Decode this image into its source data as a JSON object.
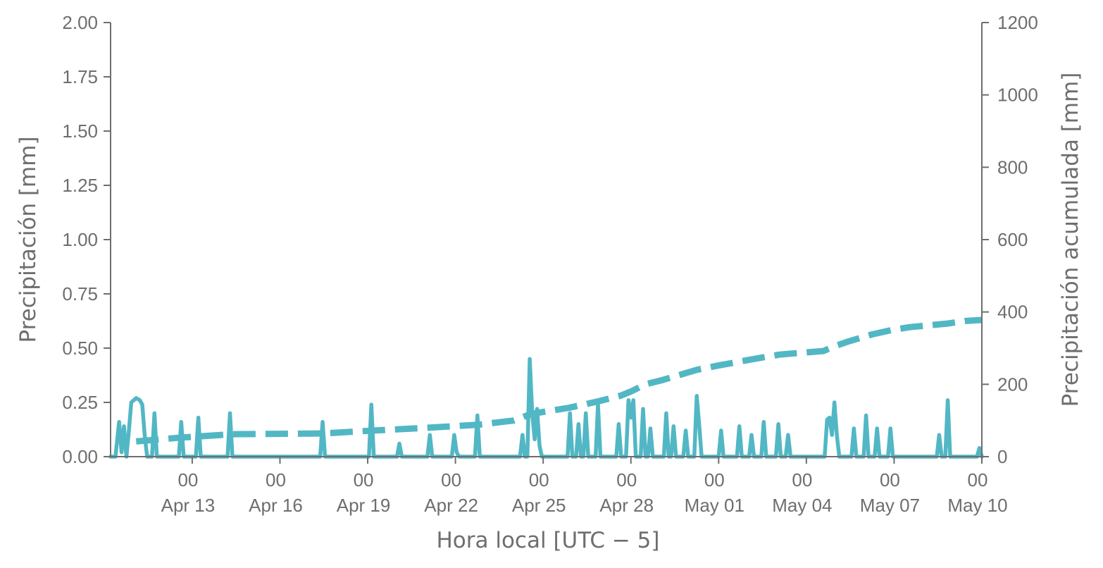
{
  "chart_data": {
    "type": "line",
    "xlabel": "Hora local [UTC − 5]",
    "ylabel_left": "Precipitación [mm]",
    "ylabel_right": "Precipitación acumulada [mm]",
    "xlim": [
      "2025-04-10T05:00",
      "2025-05-10T00:00"
    ],
    "ylim_left": [
      0,
      2.0
    ],
    "ylim_right": [
      0,
      1200
    ],
    "xticks": [
      {
        "date": "2025-04-13T00:00",
        "line1": "00",
        "line2": "Apr 13"
      },
      {
        "date": "2025-04-16T00:00",
        "line1": "00",
        "line2": "Apr 16"
      },
      {
        "date": "2025-04-19T00:00",
        "line1": "00",
        "line2": "Apr 19"
      },
      {
        "date": "2025-04-22T00:00",
        "line1": "00",
        "line2": "Apr 22"
      },
      {
        "date": "2025-04-25T00:00",
        "line1": "00",
        "line2": "Apr 25"
      },
      {
        "date": "2025-04-28T00:00",
        "line1": "00",
        "line2": "Apr 28"
      },
      {
        "date": "2025-05-01T00:00",
        "line1": "00",
        "line2": "May 01"
      },
      {
        "date": "2025-05-04T00:00",
        "line1": "00",
        "line2": "May 04"
      },
      {
        "date": "2025-05-07T00:00",
        "line1": "00",
        "line2": "May 07"
      },
      {
        "date": "2025-05-10T00:00",
        "line1": "00",
        "line2": "May 10"
      }
    ],
    "yticks_left": [
      "0.00",
      "0.25",
      "0.50",
      "0.75",
      "1.00",
      "1.25",
      "1.50",
      "1.75",
      "2.00"
    ],
    "yticks_right": [
      "0",
      "200",
      "400",
      "600",
      "800",
      "1000",
      "1200"
    ],
    "grid": false,
    "series": [
      {
        "style": "solid",
        "color": "#52b7c4",
        "points": [
          [
            "2025-04-10T05:00",
            0
          ],
          [
            "2025-04-10T09:00",
            0
          ],
          [
            "2025-04-10T12:00",
            0.16
          ],
          [
            "2025-04-10T14:00",
            0.02
          ],
          [
            "2025-04-10T16:00",
            0.14
          ],
          [
            "2025-04-10T18:00",
            0
          ],
          [
            "2025-04-10T20:00",
            0.12
          ],
          [
            "2025-04-10T22:00",
            0.25
          ],
          [
            "2025-04-11T00:00",
            0.26
          ],
          [
            "2025-04-11T02:00",
            0.27
          ],
          [
            "2025-04-11T05:00",
            0.26
          ],
          [
            "2025-04-11T07:00",
            0.24
          ],
          [
            "2025-04-11T09:00",
            0.1
          ],
          [
            "2025-04-11T11:00",
            0
          ],
          [
            "2025-04-11T15:00",
            0
          ],
          [
            "2025-04-11T17:00",
            0.2
          ],
          [
            "2025-04-11T19:00",
            0
          ],
          [
            "2025-04-12T13:00",
            0
          ],
          [
            "2025-04-12T15:00",
            0.16
          ],
          [
            "2025-04-12T17:00",
            0
          ],
          [
            "2025-04-13T03:00",
            0
          ],
          [
            "2025-04-13T05:00",
            0.18
          ],
          [
            "2025-04-13T07:00",
            0
          ],
          [
            "2025-04-14T05:00",
            0
          ],
          [
            "2025-04-14T07:00",
            0.2
          ],
          [
            "2025-04-14T09:00",
            0
          ],
          [
            "2025-04-17T09:00",
            0
          ],
          [
            "2025-04-17T11:00",
            0.16
          ],
          [
            "2025-04-17T13:00",
            0
          ],
          [
            "2025-04-19T01:00",
            0
          ],
          [
            "2025-04-19T03:00",
            0.24
          ],
          [
            "2025-04-19T05:00",
            0
          ],
          [
            "2025-04-20T00:00",
            0
          ],
          [
            "2025-04-20T02:00",
            0.06
          ],
          [
            "2025-04-20T04:00",
            0
          ],
          [
            "2025-04-21T01:00",
            0
          ],
          [
            "2025-04-21T03:00",
            0.1
          ],
          [
            "2025-04-21T05:00",
            0
          ],
          [
            "2025-04-21T21:00",
            0
          ],
          [
            "2025-04-21T23:00",
            0.1
          ],
          [
            "2025-04-22T01:00",
            0.02
          ],
          [
            "2025-04-22T03:00",
            0
          ],
          [
            "2025-04-22T16:00",
            0
          ],
          [
            "2025-04-22T18:00",
            0.19
          ],
          [
            "2025-04-22T20:00",
            0
          ],
          [
            "2025-04-24T05:00",
            0
          ],
          [
            "2025-04-24T07:00",
            0.1
          ],
          [
            "2025-04-24T09:00",
            0
          ],
          [
            "2025-04-24T11:00",
            0
          ],
          [
            "2025-04-24T13:00",
            0.45
          ],
          [
            "2025-04-24T15:00",
            0.2
          ],
          [
            "2025-04-24T17:00",
            0.08
          ],
          [
            "2025-04-24T19:00",
            0.22
          ],
          [
            "2025-04-24T21:00",
            0.05
          ],
          [
            "2025-04-24T23:00",
            0
          ],
          [
            "2025-04-25T20:00",
            0
          ],
          [
            "2025-04-25T22:00",
            0.2
          ],
          [
            "2025-04-26T00:00",
            0
          ],
          [
            "2025-04-26T03:00",
            0
          ],
          [
            "2025-04-26T05:00",
            0.15
          ],
          [
            "2025-04-26T07:00",
            0
          ],
          [
            "2025-04-26T09:00",
            0
          ],
          [
            "2025-04-26T11:00",
            0.2
          ],
          [
            "2025-04-26T13:00",
            0
          ],
          [
            "2025-04-26T19:00",
            0
          ],
          [
            "2025-04-26T21:00",
            0.24
          ],
          [
            "2025-04-26T23:00",
            0
          ],
          [
            "2025-04-27T12:00",
            0
          ],
          [
            "2025-04-27T14:00",
            0.15
          ],
          [
            "2025-04-27T16:00",
            0
          ],
          [
            "2025-04-27T20:00",
            0
          ],
          [
            "2025-04-27T22:00",
            0.26
          ],
          [
            "2025-04-28T00:00",
            0.18
          ],
          [
            "2025-04-28T02:00",
            0.26
          ],
          [
            "2025-04-28T04:00",
            0
          ],
          [
            "2025-04-28T08:00",
            0
          ],
          [
            "2025-04-28T10:00",
            0.22
          ],
          [
            "2025-04-28T12:00",
            0
          ],
          [
            "2025-04-28T14:00",
            0
          ],
          [
            "2025-04-28T16:00",
            0.13
          ],
          [
            "2025-04-28T18:00",
            0
          ],
          [
            "2025-04-29T03:00",
            0
          ],
          [
            "2025-04-29T05:00",
            0.2
          ],
          [
            "2025-04-29T07:00",
            0
          ],
          [
            "2025-04-29T09:00",
            0
          ],
          [
            "2025-04-29T11:00",
            0.14
          ],
          [
            "2025-04-29T13:00",
            0
          ],
          [
            "2025-04-29T19:00",
            0
          ],
          [
            "2025-04-29T21:00",
            0.12
          ],
          [
            "2025-04-29T23:00",
            0
          ],
          [
            "2025-04-30T04:00",
            0
          ],
          [
            "2025-04-30T06:00",
            0.28
          ],
          [
            "2025-04-30T08:00",
            0.15
          ],
          [
            "2025-04-30T10:00",
            0
          ],
          [
            "2025-05-01T00:00",
            0
          ],
          [
            "2025-05-01T02:00",
            0.12
          ],
          [
            "2025-05-01T04:00",
            0
          ],
          [
            "2025-05-01T15:00",
            0
          ],
          [
            "2025-05-01T17:00",
            0.14
          ],
          [
            "2025-05-01T19:00",
            0
          ],
          [
            "2025-05-02T01:00",
            0
          ],
          [
            "2025-05-02T03:00",
            0.1
          ],
          [
            "2025-05-02T05:00",
            0
          ],
          [
            "2025-05-02T11:00",
            0
          ],
          [
            "2025-05-02T13:00",
            0.16
          ],
          [
            "2025-05-02T15:00",
            0
          ],
          [
            "2025-05-02T23:00",
            0
          ],
          [
            "2025-05-03T01:00",
            0.15
          ],
          [
            "2025-05-03T03:00",
            0
          ],
          [
            "2025-05-03T07:00",
            0
          ],
          [
            "2025-05-03T09:00",
            0.1
          ],
          [
            "2025-05-03T11:00",
            0
          ],
          [
            "2025-05-04T15:00",
            0
          ],
          [
            "2025-05-04T17:00",
            0.17
          ],
          [
            "2025-05-04T19:00",
            0.18
          ],
          [
            "2025-05-04T21:00",
            0.1
          ],
          [
            "2025-05-04T23:00",
            0.25
          ],
          [
            "2025-05-05T01:00",
            0.1
          ],
          [
            "2025-05-05T03:00",
            0
          ],
          [
            "2025-05-05T13:00",
            0
          ],
          [
            "2025-05-05T15:00",
            0.13
          ],
          [
            "2025-05-05T17:00",
            0
          ],
          [
            "2025-05-05T23:00",
            0
          ],
          [
            "2025-05-06T01:00",
            0.19
          ],
          [
            "2025-05-06T03:00",
            0
          ],
          [
            "2025-05-06T08:00",
            0
          ],
          [
            "2025-05-06T10:00",
            0.13
          ],
          [
            "2025-05-06T12:00",
            0
          ],
          [
            "2025-05-06T19:00",
            0
          ],
          [
            "2025-05-06T21:00",
            0.13
          ],
          [
            "2025-05-06T23:00",
            0
          ],
          [
            "2025-05-08T11:00",
            0
          ],
          [
            "2025-05-08T13:00",
            0.1
          ],
          [
            "2025-05-08T15:00",
            0
          ],
          [
            "2025-05-08T18:00",
            0
          ],
          [
            "2025-05-08T20:00",
            0.26
          ],
          [
            "2025-05-08T22:00",
            0
          ],
          [
            "2025-05-09T20:00",
            0
          ],
          [
            "2025-05-09T22:00",
            0.04
          ],
          [
            "2025-05-10T00:00",
            0
          ]
        ]
      },
      {
        "style": "dashed",
        "color": "#52b7c4",
        "points": [
          [
            "2025-04-11T02:00",
            42
          ],
          [
            "2025-04-12T12:00",
            52
          ],
          [
            "2025-04-13T05:00",
            56
          ],
          [
            "2025-04-14T08:00",
            62
          ],
          [
            "2025-04-17T11:00",
            64
          ],
          [
            "2025-04-19T04:00",
            72
          ],
          [
            "2025-04-21T02:00",
            80
          ],
          [
            "2025-04-22T18:00",
            88
          ],
          [
            "2025-04-24T00:00",
            100
          ],
          [
            "2025-04-24T14:00",
            118
          ],
          [
            "2025-04-25T21:00",
            135
          ],
          [
            "2025-04-26T20:00",
            152
          ],
          [
            "2025-04-27T15:00",
            168
          ],
          [
            "2025-04-28T00:00",
            180
          ],
          [
            "2025-04-28T12:00",
            200
          ],
          [
            "2025-04-29T02:00",
            212
          ],
          [
            "2025-04-29T15:00",
            225
          ],
          [
            "2025-04-30T06:00",
            240
          ],
          [
            "2025-05-01T00:00",
            252
          ],
          [
            "2025-05-01T16:00",
            262
          ],
          [
            "2025-05-02T08:00",
            272
          ],
          [
            "2025-05-03T02:00",
            282
          ],
          [
            "2025-05-03T12:00",
            285
          ],
          [
            "2025-05-04T14:00",
            292
          ],
          [
            "2025-05-04T23:00",
            305
          ],
          [
            "2025-05-05T10:00",
            318
          ],
          [
            "2025-05-06T06:00",
            338
          ],
          [
            "2025-05-06T22:00",
            350
          ],
          [
            "2025-05-07T13:00",
            358
          ],
          [
            "2025-05-08T20:00",
            368
          ],
          [
            "2025-05-09T10:00",
            375
          ],
          [
            "2025-05-10T00:00",
            378
          ]
        ]
      }
    ]
  }
}
